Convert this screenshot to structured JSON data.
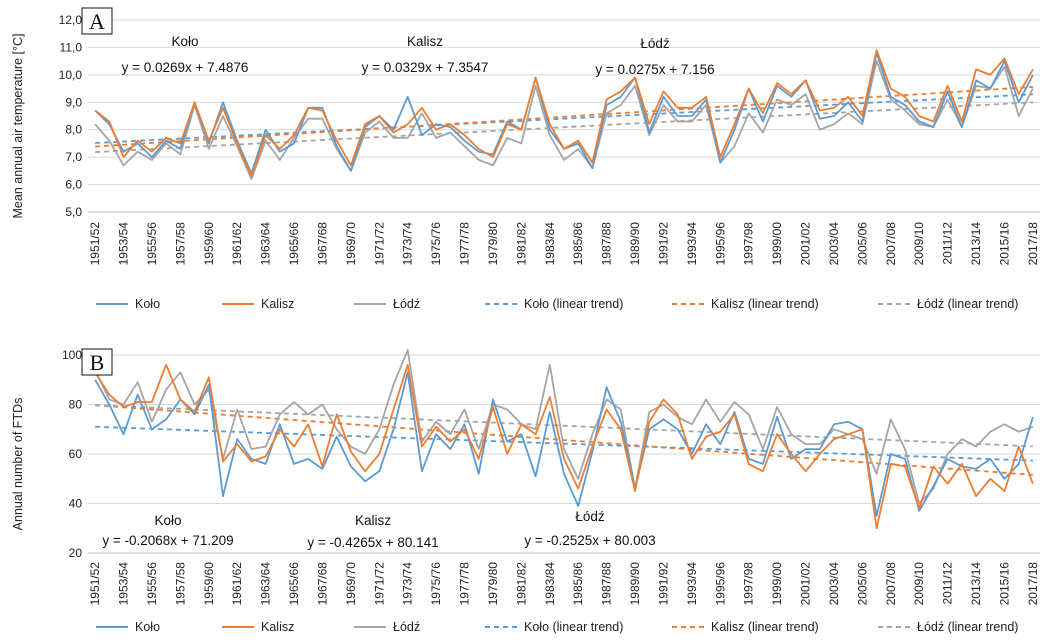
{
  "colors": {
    "kolo": "#5B9BD5",
    "kalisz": "#ED7D31",
    "lodz": "#A5A5A5",
    "grid": "#D9D9D9",
    "axis": "#BFBFBF"
  },
  "chart_data": [
    {
      "type": "line",
      "panel_label": "A",
      "ylabel": "Mean annual air temperature [°C]",
      "ylim": [
        5,
        12
      ],
      "yticks": [
        "5,0",
        "6,0",
        "7,0",
        "8,0",
        "9,0",
        "10,0",
        "11,0",
        "12,0"
      ],
      "grid": true,
      "legend_position": "bottom",
      "x": [
        "1951/52",
        "1952/53",
        "1953/54",
        "1954/55",
        "1955/56",
        "1956/57",
        "1957/58",
        "1958/59",
        "1959/60",
        "1960/61",
        "1961/62",
        "1962/63",
        "1963/64",
        "1964/65",
        "1965/66",
        "1966/67",
        "1967/68",
        "1968/69",
        "1969/70",
        "1970/71",
        "1971/72",
        "1972/73",
        "1973/74",
        "1974/75",
        "1975/76",
        "1976/77",
        "1977/78",
        "1978/79",
        "1979/80",
        "1980/81",
        "1981/82",
        "1982/83",
        "1983/84",
        "1984/85",
        "1985/86",
        "1986/87",
        "1987/88",
        "1988/89",
        "1989/90",
        "1990/91",
        "1991/92",
        "1992/93",
        "1993/94",
        "1994/95",
        "1995/96",
        "1996/97",
        "1997/98",
        "1998/99",
        "1999/00",
        "2000/01",
        "2001/02",
        "2002/03",
        "2003/04",
        "2004/05",
        "2005/06",
        "2006/07",
        "2007/08",
        "2008/09",
        "2009/10",
        "2010/11",
        "2011/12",
        "2012/13",
        "2013/14",
        "2014/15",
        "2015/16",
        "2016/17",
        "2017/18"
      ],
      "xtick_labels": [
        "1951/52",
        "1953/54",
        "1955/56",
        "1957/58",
        "1959/60",
        "1961/62",
        "1963/64",
        "1965/66",
        "1967/68",
        "1969/70",
        "1971/72",
        "1973/74",
        "1975/76",
        "1977/78",
        "1979/80",
        "1981/82",
        "1983/84",
        "1985/86",
        "1987/88",
        "1989/90",
        "1991/92",
        "1993/94",
        "1995/96",
        "1997/98",
        "1999/00",
        "2001/02",
        "2003/04",
        "2005/06",
        "2007/08",
        "2009/10",
        "2011/12",
        "2013/14",
        "2015/16",
        "2017/18"
      ],
      "series": [
        {
          "name": "Koło",
          "color_key": "kolo",
          "values": [
            8.7,
            8.2,
            7.2,
            7.5,
            7.0,
            7.6,
            7.3,
            9.0,
            7.5,
            9.0,
            7.6,
            6.4,
            8.0,
            7.2,
            7.5,
            8.8,
            8.8,
            7.4,
            6.5,
            8.1,
            8.5,
            8.0,
            9.2,
            7.8,
            8.2,
            8.1,
            7.6,
            7.2,
            7.1,
            8.3,
            8.0,
            9.9,
            8.0,
            7.3,
            7.5,
            6.6,
            8.9,
            9.2,
            9.9,
            7.9,
            9.2,
            8.5,
            8.5,
            9.1,
            6.8,
            8.0,
            9.5,
            8.3,
            9.6,
            9.2,
            9.8,
            8.4,
            8.5,
            9.0,
            8.3,
            10.8,
            9.2,
            8.9,
            8.3,
            8.1,
            9.4,
            8.1,
            9.8,
            9.5,
            10.5,
            9.0,
            10.0
          ]
        },
        {
          "name": "Kalisz",
          "color_key": "kalisz",
          "values": [
            8.7,
            8.3,
            7.0,
            7.6,
            7.2,
            7.7,
            7.5,
            9.0,
            7.6,
            8.8,
            7.5,
            6.3,
            7.8,
            7.3,
            7.8,
            8.8,
            8.7,
            7.6,
            6.7,
            8.2,
            8.5,
            7.9,
            8.2,
            8.8,
            8.0,
            8.2,
            7.8,
            7.3,
            7.0,
            8.2,
            8.0,
            9.9,
            8.2,
            7.3,
            7.6,
            6.8,
            9.1,
            9.4,
            9.9,
            8.2,
            9.4,
            8.8,
            8.8,
            9.2,
            7.0,
            8.2,
            9.5,
            8.6,
            9.7,
            9.3,
            9.8,
            8.7,
            8.8,
            9.2,
            8.5,
            10.9,
            9.5,
            9.2,
            8.5,
            8.3,
            9.6,
            8.3,
            10.2,
            10.0,
            10.6,
            9.3,
            10.2
          ]
        },
        {
          "name": "Łódź",
          "color_key": "lodz",
          "values": [
            8.2,
            7.6,
            6.7,
            7.2,
            6.9,
            7.5,
            7.1,
            8.9,
            7.3,
            8.5,
            7.4,
            6.2,
            7.6,
            6.9,
            7.7,
            8.4,
            8.4,
            7.3,
            6.5,
            7.9,
            8.3,
            7.7,
            7.7,
            8.6,
            7.7,
            7.9,
            7.4,
            6.9,
            6.7,
            7.7,
            7.5,
            9.6,
            7.8,
            6.9,
            7.3,
            6.6,
            8.6,
            8.9,
            9.6,
            7.8,
            8.9,
            8.3,
            8.3,
            8.9,
            6.8,
            7.4,
            8.6,
            7.9,
            9.1,
            8.9,
            9.3,
            8.0,
            8.2,
            8.6,
            8.2,
            10.5,
            9.1,
            8.7,
            8.2,
            8.1,
            9.1,
            8.1,
            9.6,
            9.5,
            10.3,
            8.5,
            9.5
          ]
        }
      ],
      "trends": [
        {
          "name": "Koło (linear trend)",
          "color_key": "kolo",
          "slope": 0.0269,
          "intercept": 7.4876
        },
        {
          "name": "Kalisz (linear trend)",
          "color_key": "kalisz",
          "slope": 0.0329,
          "intercept": 7.3547
        },
        {
          "name": "Łódź (linear trend)",
          "color_key": "lodz",
          "slope": 0.0275,
          "intercept": 7.156
        }
      ],
      "annotations": [
        {
          "station": "Koło",
          "equation": "y = 0.0269x + 7.4876"
        },
        {
          "station": "Kalisz",
          "equation": "y = 0.0329x + 7.3547"
        },
        {
          "station": "Łódź",
          "equation": "y = 0.0275x + 7.156"
        }
      ]
    },
    {
      "type": "line",
      "panel_label": "B",
      "ylabel": "Annual number of FTDs",
      "ylim": [
        20,
        100
      ],
      "yticks": [
        "20",
        "40",
        "60",
        "80",
        "100"
      ],
      "grid": true,
      "legend_position": "bottom",
      "x": [
        "1951/52",
        "1952/53",
        "1953/54",
        "1954/55",
        "1955/56",
        "1956/57",
        "1957/58",
        "1958/59",
        "1959/60",
        "1960/61",
        "1961/62",
        "1962/63",
        "1963/64",
        "1964/65",
        "1965/66",
        "1966/67",
        "1967/68",
        "1968/69",
        "1969/70",
        "1970/71",
        "1971/72",
        "1972/73",
        "1973/74",
        "1974/75",
        "1975/76",
        "1976/77",
        "1977/78",
        "1978/79",
        "1979/80",
        "1980/81",
        "1981/82",
        "1982/83",
        "1983/84",
        "1984/85",
        "1985/86",
        "1986/87",
        "1987/88",
        "1988/89",
        "1989/90",
        "1990/91",
        "1991/92",
        "1992/93",
        "1993/94",
        "1994/95",
        "1995/96",
        "1996/97",
        "1997/98",
        "1998/99",
        "1999/00",
        "2000/01",
        "2001/02",
        "2002/03",
        "2003/04",
        "2004/05",
        "2005/06",
        "2006/07",
        "2007/08",
        "2008/09",
        "2009/10",
        "2010/11",
        "2011/12",
        "2012/13",
        "2013/14",
        "2014/15",
        "2015/16",
        "2016/17",
        "2017/18"
      ],
      "xtick_labels": [
        "1951/52",
        "1953/54",
        "1955/56",
        "1957/58",
        "1959/60",
        "1961/62",
        "1963/64",
        "1965/66",
        "1967/68",
        "1969/70",
        "1971/72",
        "1973/74",
        "1975/76",
        "1977/78",
        "1979/80",
        "1981/82",
        "1983/84",
        "1985/86",
        "1987/88",
        "1989/90",
        "1991/92",
        "1993/94",
        "1995/96",
        "1997/98",
        "1999/00",
        "2001/02",
        "2003/04",
        "2005/06",
        "2007/08",
        "2009/10",
        "2011/12",
        "2013/14",
        "2015/16",
        "2017/18"
      ],
      "series": [
        {
          "name": "Koło",
          "color_key": "kolo",
          "values": [
            90,
            80,
            68,
            84,
            70,
            74,
            82,
            76,
            88,
            43,
            66,
            58,
            56,
            72,
            56,
            58,
            54,
            67,
            55,
            49,
            53,
            70,
            93,
            53,
            68,
            62,
            72,
            52,
            82,
            65,
            68,
            51,
            77,
            52,
            39,
            61,
            87,
            73,
            46,
            70,
            74,
            70,
            60,
            72,
            64,
            77,
            58,
            56,
            75,
            58,
            62,
            62,
            72,
            73,
            70,
            35,
            60,
            58,
            37,
            47,
            58,
            55,
            54,
            58,
            50,
            56,
            75
          ]
        },
        {
          "name": "Kalisz",
          "color_key": "kalisz",
          "values": [
            93,
            84,
            79,
            81,
            81,
            96,
            82,
            77,
            91,
            57,
            64,
            57,
            59,
            70,
            63,
            72,
            55,
            76,
            61,
            53,
            60,
            78,
            96,
            63,
            71,
            65,
            70,
            58,
            79,
            60,
            72,
            68,
            83,
            58,
            46,
            63,
            78,
            70,
            45,
            73,
            82,
            76,
            58,
            67,
            69,
            76,
            56,
            53,
            68,
            60,
            53,
            60,
            66,
            68,
            70,
            30,
            56,
            55,
            38,
            55,
            48,
            56,
            43,
            50,
            45,
            63,
            48
          ]
        },
        {
          "name": "Łódź",
          "color_key": "lodz",
          "values": [
            94,
            82,
            80,
            89,
            73,
            86,
            93,
            80,
            86,
            58,
            78,
            62,
            63,
            76,
            81,
            76,
            80,
            70,
            63,
            60,
            70,
            88,
            102,
            65,
            73,
            68,
            78,
            62,
            80,
            78,
            72,
            70,
            96,
            62,
            50,
            68,
            82,
            78,
            46,
            77,
            80,
            75,
            72,
            82,
            73,
            81,
            76,
            62,
            79,
            68,
            64,
            64,
            70,
            68,
            66,
            52,
            74,
            62,
            40,
            46,
            60,
            66,
            63,
            69,
            72,
            69,
            71
          ]
        }
      ],
      "trends": [
        {
          "name": "Koło (linear trend)",
          "color_key": "kolo",
          "slope": -0.2068,
          "intercept": 71.209
        },
        {
          "name": "Kalisz (linear trend)",
          "color_key": "kalisz",
          "slope": -0.4265,
          "intercept": 80.141
        },
        {
          "name": "Łódź (linear trend)",
          "color_key": "lodz",
          "slope": -0.2525,
          "intercept": 80.003
        }
      ],
      "annotations": [
        {
          "station": "Koło",
          "equation": "y = -0.2068x + 71.209"
        },
        {
          "station": "Kalisz",
          "equation": "y = -0.4265x + 80.141"
        },
        {
          "station": "Łódź",
          "equation": "y = -0.2525x + 80.003"
        }
      ]
    }
  ]
}
